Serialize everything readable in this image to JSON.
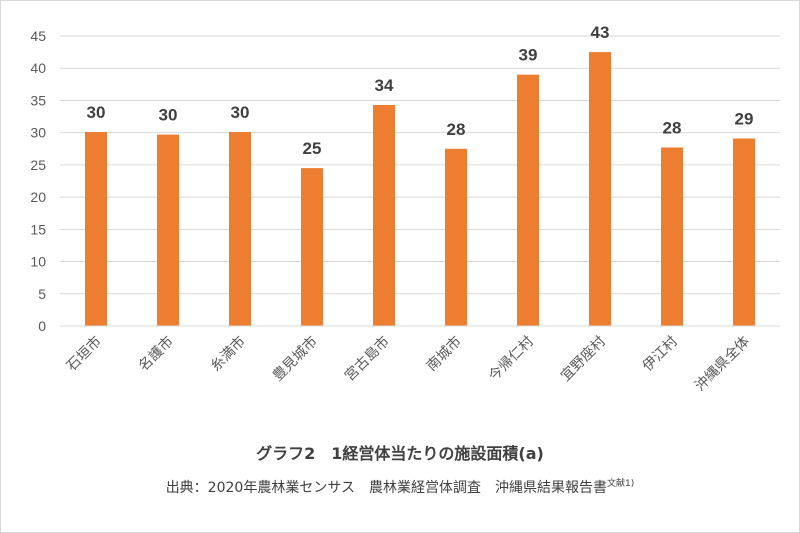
{
  "chart_data": {
    "type": "bar",
    "title": "グラフ2　1経営体当たりの施設面積(a)",
    "source_main": "出典：2020年農林業センサス　農林業経営体調査　沖縄県結果報告書",
    "source_note": "文献1)",
    "categories": [
      "石垣市",
      "名護市",
      "糸満市",
      "豊見城市",
      "宮古島市",
      "南城市",
      "今帰仁村",
      "宜野座村",
      "伊江村",
      "沖縄県全体"
    ],
    "values": [
      30.1,
      29.7,
      30.1,
      24.5,
      34.3,
      27.5,
      39.0,
      42.5,
      27.7,
      29.1
    ],
    "data_labels": [
      "30",
      "30",
      "30",
      "25",
      "34",
      "28",
      "39",
      "43",
      "28",
      "29"
    ],
    "ylim": [
      0,
      45
    ],
    "yticks": [
      "0",
      "5",
      "10",
      "15",
      "20",
      "25",
      "30",
      "35",
      "40",
      "45"
    ],
    "grid": true,
    "bar_color": "#ED7D31",
    "grid_color": "#D9D9D9"
  }
}
